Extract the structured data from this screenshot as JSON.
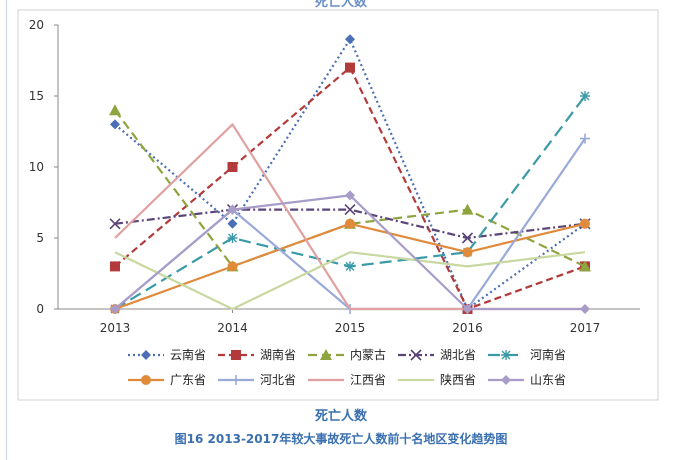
{
  "chart_data": {
    "type": "line",
    "title": "死亡人数",
    "xlabel": "死亡人数",
    "ylabel": "",
    "caption": "图16  2013-2017年较大事故死亡人数前十名地区变化趋势图",
    "categories": [
      "2013",
      "2014",
      "2015",
      "2016",
      "2017"
    ],
    "ylim": [
      0,
      20
    ],
    "yticks": [
      0,
      5,
      10,
      15,
      20
    ],
    "grid": false,
    "legend_position": "bottom",
    "series": [
      {
        "name": "云南省",
        "values": [
          13,
          6,
          19,
          0,
          6
        ],
        "color": "#4a6fb5",
        "dash": "2,3",
        "marker": "diamond"
      },
      {
        "name": "湖南省",
        "values": [
          3,
          10,
          17,
          0,
          3
        ],
        "color": "#b23a3a",
        "dash": "7,4",
        "marker": "square"
      },
      {
        "name": "内蒙古",
        "values": [
          14,
          3,
          6,
          7,
          3
        ],
        "color": "#8ea43e",
        "dash": "9,5",
        "marker": "triangle"
      },
      {
        "name": "湖北省",
        "values": [
          6,
          7,
          7,
          5,
          6
        ],
        "color": "#5a4478",
        "dash": "8,3,2,3",
        "marker": "x"
      },
      {
        "name": "河南省",
        "values": [
          0,
          5,
          3,
          4,
          15
        ],
        "color": "#3a9aa8",
        "dash": "12,6",
        "marker": "star"
      },
      {
        "name": "广东省",
        "values": [
          0,
          3,
          6,
          4,
          6
        ],
        "color": "#e08a3c",
        "dash": "",
        "marker": "circle"
      },
      {
        "name": "河北省",
        "values": [
          0,
          7,
          0,
          0,
          12
        ],
        "color": "#9aaad8",
        "dash": "",
        "marker": "plus"
      },
      {
        "name": "江西省",
        "values": [
          5,
          13,
          0,
          0,
          0
        ],
        "color": "#e0a0a0",
        "dash": "",
        "marker": "none"
      },
      {
        "name": "陕西省",
        "values": [
          4,
          0,
          4,
          3,
          4
        ],
        "color": "#c8d8a0",
        "dash": "",
        "marker": "none"
      },
      {
        "name": "山东省",
        "values": [
          0,
          7,
          8,
          0,
          0
        ],
        "color": "#a89cc8",
        "dash": "",
        "marker": "diamond"
      }
    ]
  }
}
